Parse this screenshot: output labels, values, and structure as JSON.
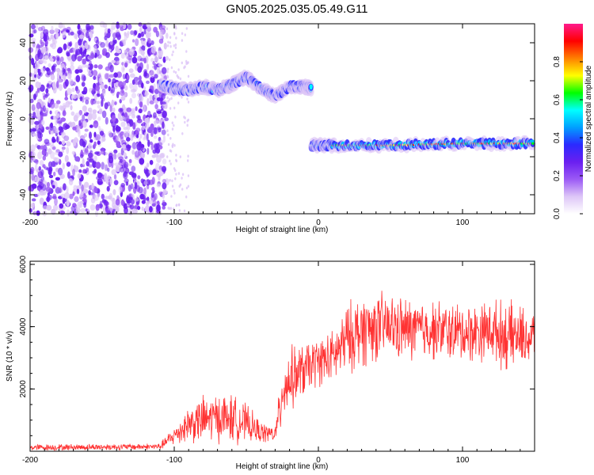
{
  "title": "GN05.2025.035.05.49.G11",
  "chart_data": [
    {
      "type": "heatmap",
      "xlabel": "Height of straight line (km)",
      "ylabel": "Frequency (Hz)",
      "xlim": [
        -200,
        150
      ],
      "ylim": [
        -50,
        50
      ],
      "xticks": [
        -200,
        -100,
        0,
        100
      ],
      "yticks": [
        -40,
        -20,
        0,
        20,
        40
      ],
      "colorbar": {
        "label": "Normalized spectral amplitude",
        "range": [
          0,
          1
        ],
        "ticks": [
          0.0,
          0.2,
          0.4,
          0.6,
          0.8
        ],
        "colors": [
          "#ffffff",
          "#ddc6f7",
          "#9b59f5",
          "#6a1ff0",
          "#2a2aff",
          "#00a0ff",
          "#00ffff",
          "#00ff00",
          "#ffff00",
          "#ff8000",
          "#ff0000",
          "#ff1a8c"
        ]
      },
      "tracks": [
        {
          "x": [
            -110,
            -100,
            -90,
            -80,
            -70,
            -60,
            -50,
            -40,
            -30,
            -20,
            -10,
            -5
          ],
          "y": [
            18,
            16,
            15,
            17,
            15,
            18,
            22,
            16,
            12,
            17,
            17,
            16
          ],
          "level": 0.7
        },
        {
          "x": [
            -5,
            10,
            50,
            100,
            150
          ],
          "y": [
            -14,
            -14,
            -14,
            -13,
            -13
          ],
          "level": 0.95
        }
      ],
      "noise_region": {
        "x": [
          -200,
          -105
        ],
        "level": 0.3
      }
    },
    {
      "type": "line",
      "xlabel": "Height of straight line (km)",
      "ylabel": "SNR (10 * v/v)",
      "xlim": [
        -200,
        150
      ],
      "ylim": [
        0,
        6100
      ],
      "xticks": [
        -200,
        -100,
        0,
        100
      ],
      "yticks": [
        2000,
        4000,
        6000
      ],
      "series": [
        {
          "color": "#ff3333",
          "envelope": {
            "x": [
              -200,
              -110,
              -100,
              -90,
              -80,
              -70,
              -60,
              -50,
              -40,
              -30,
              -27,
              -25,
              -20,
              -10,
              0,
              10,
              20,
              30,
              40,
              50,
              60,
              80,
              100,
              120,
              130,
              140,
              150
            ],
            "mean": [
              120,
              150,
              500,
              900,
              1000,
              1100,
              1050,
              900,
              600,
              550,
              1200,
              2000,
              2300,
              2600,
              2900,
              3000,
              3600,
              3900,
              4000,
              4000,
              3900,
              3900,
              3800,
              3900,
              3700,
              3700,
              3600
            ],
            "spread": [
              120,
              120,
              350,
              700,
              900,
              900,
              900,
              700,
              400,
              300,
              900,
              1200,
              1200,
              1000,
              900,
              1000,
              1300,
              1400,
              1300,
              1200,
              1200,
              1100,
              1100,
              1100,
              1300,
              1100,
              1100
            ]
          }
        }
      ]
    }
  ]
}
